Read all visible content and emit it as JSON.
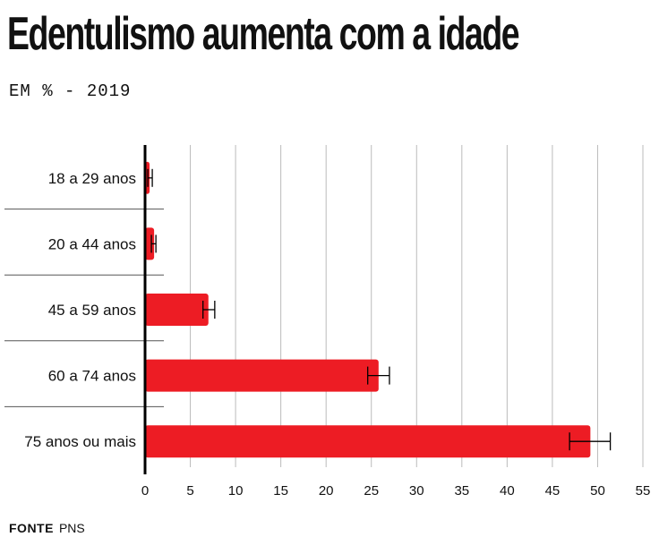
{
  "title": "Edentulismo aumenta com a idade",
  "subtitle": "EM % - 2019",
  "footer": {
    "label": "FONTE",
    "source": "PNS"
  },
  "colors": {
    "bar": "#ed1c24",
    "grid": "#bbbbbb",
    "axis": "#000000"
  },
  "chart_data": {
    "type": "bar",
    "orientation": "horizontal",
    "categories": [
      "18 a 29 anos",
      "20 a 44 anos",
      "45 a 59 anos",
      "60 a 74 anos",
      "75 anos ou mais"
    ],
    "values": [
      0.5,
      1.0,
      7.0,
      25.8,
      49.2
    ],
    "error_low": [
      0.3,
      0.7,
      6.4,
      24.6,
      46.9
    ],
    "error_high": [
      0.8,
      1.2,
      7.7,
      27.0,
      51.4
    ],
    "xlim": [
      0,
      55
    ],
    "xticks": [
      0,
      5,
      10,
      15,
      20,
      25,
      30,
      35,
      40,
      45,
      50,
      55
    ],
    "grid": true,
    "xlabel": "",
    "ylabel": ""
  }
}
